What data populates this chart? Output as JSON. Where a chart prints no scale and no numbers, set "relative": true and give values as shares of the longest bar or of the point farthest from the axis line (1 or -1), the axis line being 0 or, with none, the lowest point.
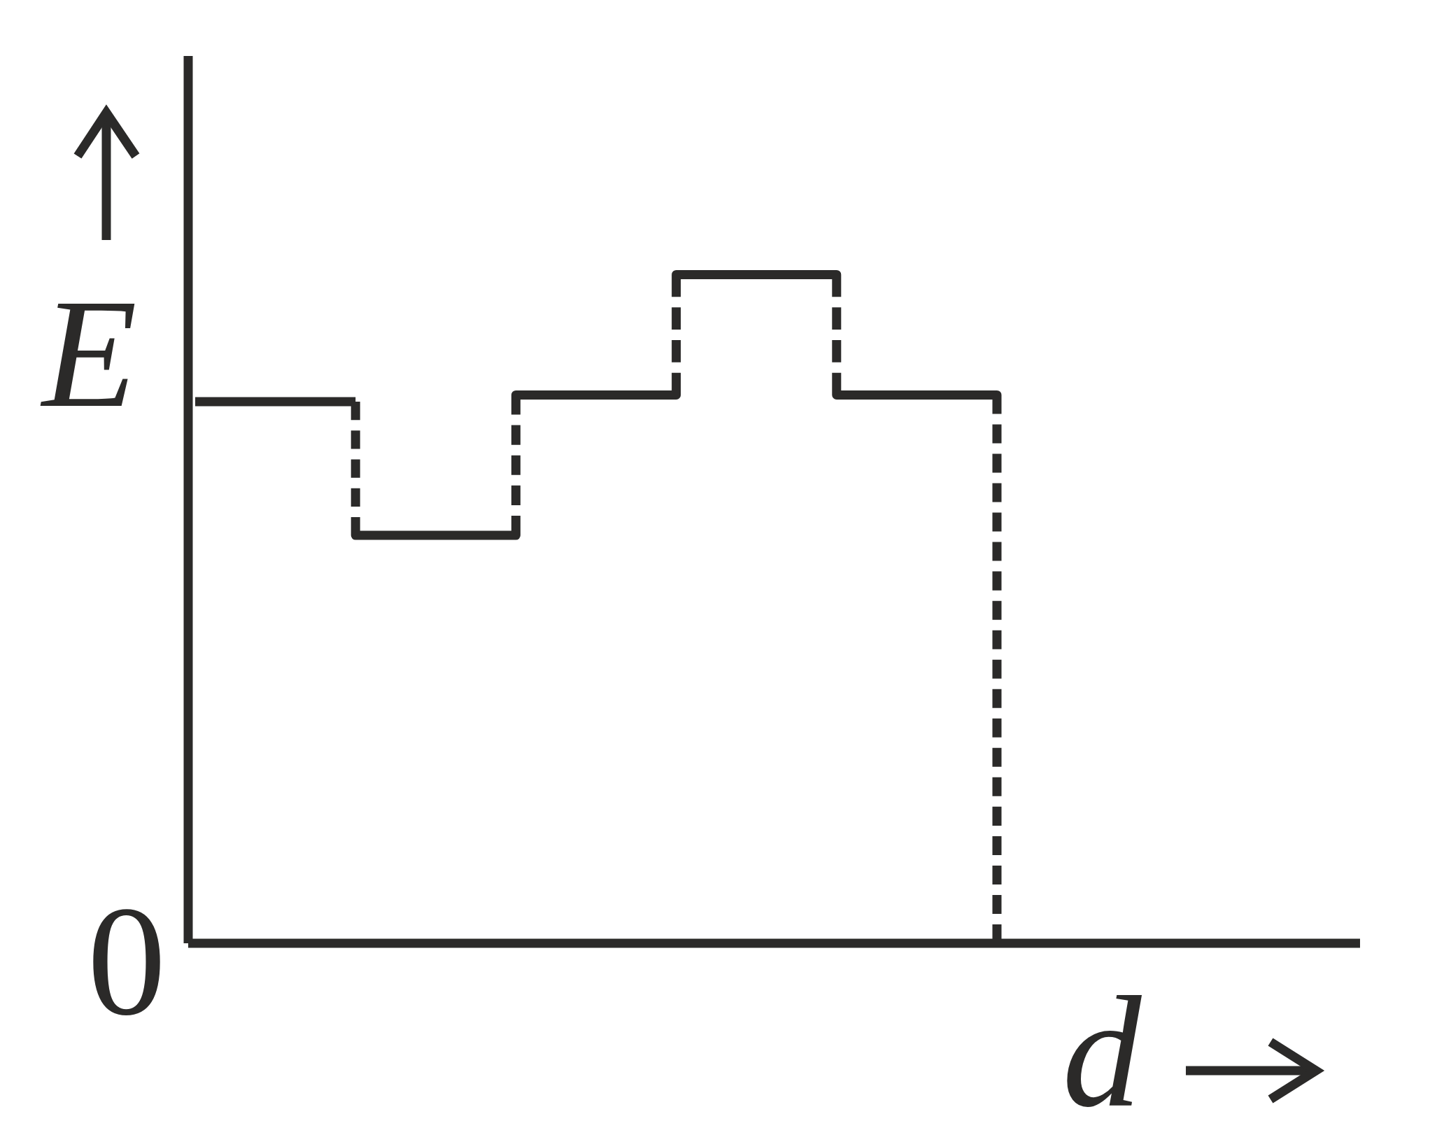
{
  "chart_data": {
    "type": "step",
    "xlabel": "d",
    "ylabel": "E",
    "categories": [
      null,
      null,
      null,
      null,
      null,
      null
    ],
    "values": [
      0.81,
      0.61,
      0.82,
      1,
      0.82,
      0
    ],
    "color": "#2b2a29",
    "relative": true,
    "line_style": "dashed",
    "annotations": [
      "0"
    ]
  }
}
